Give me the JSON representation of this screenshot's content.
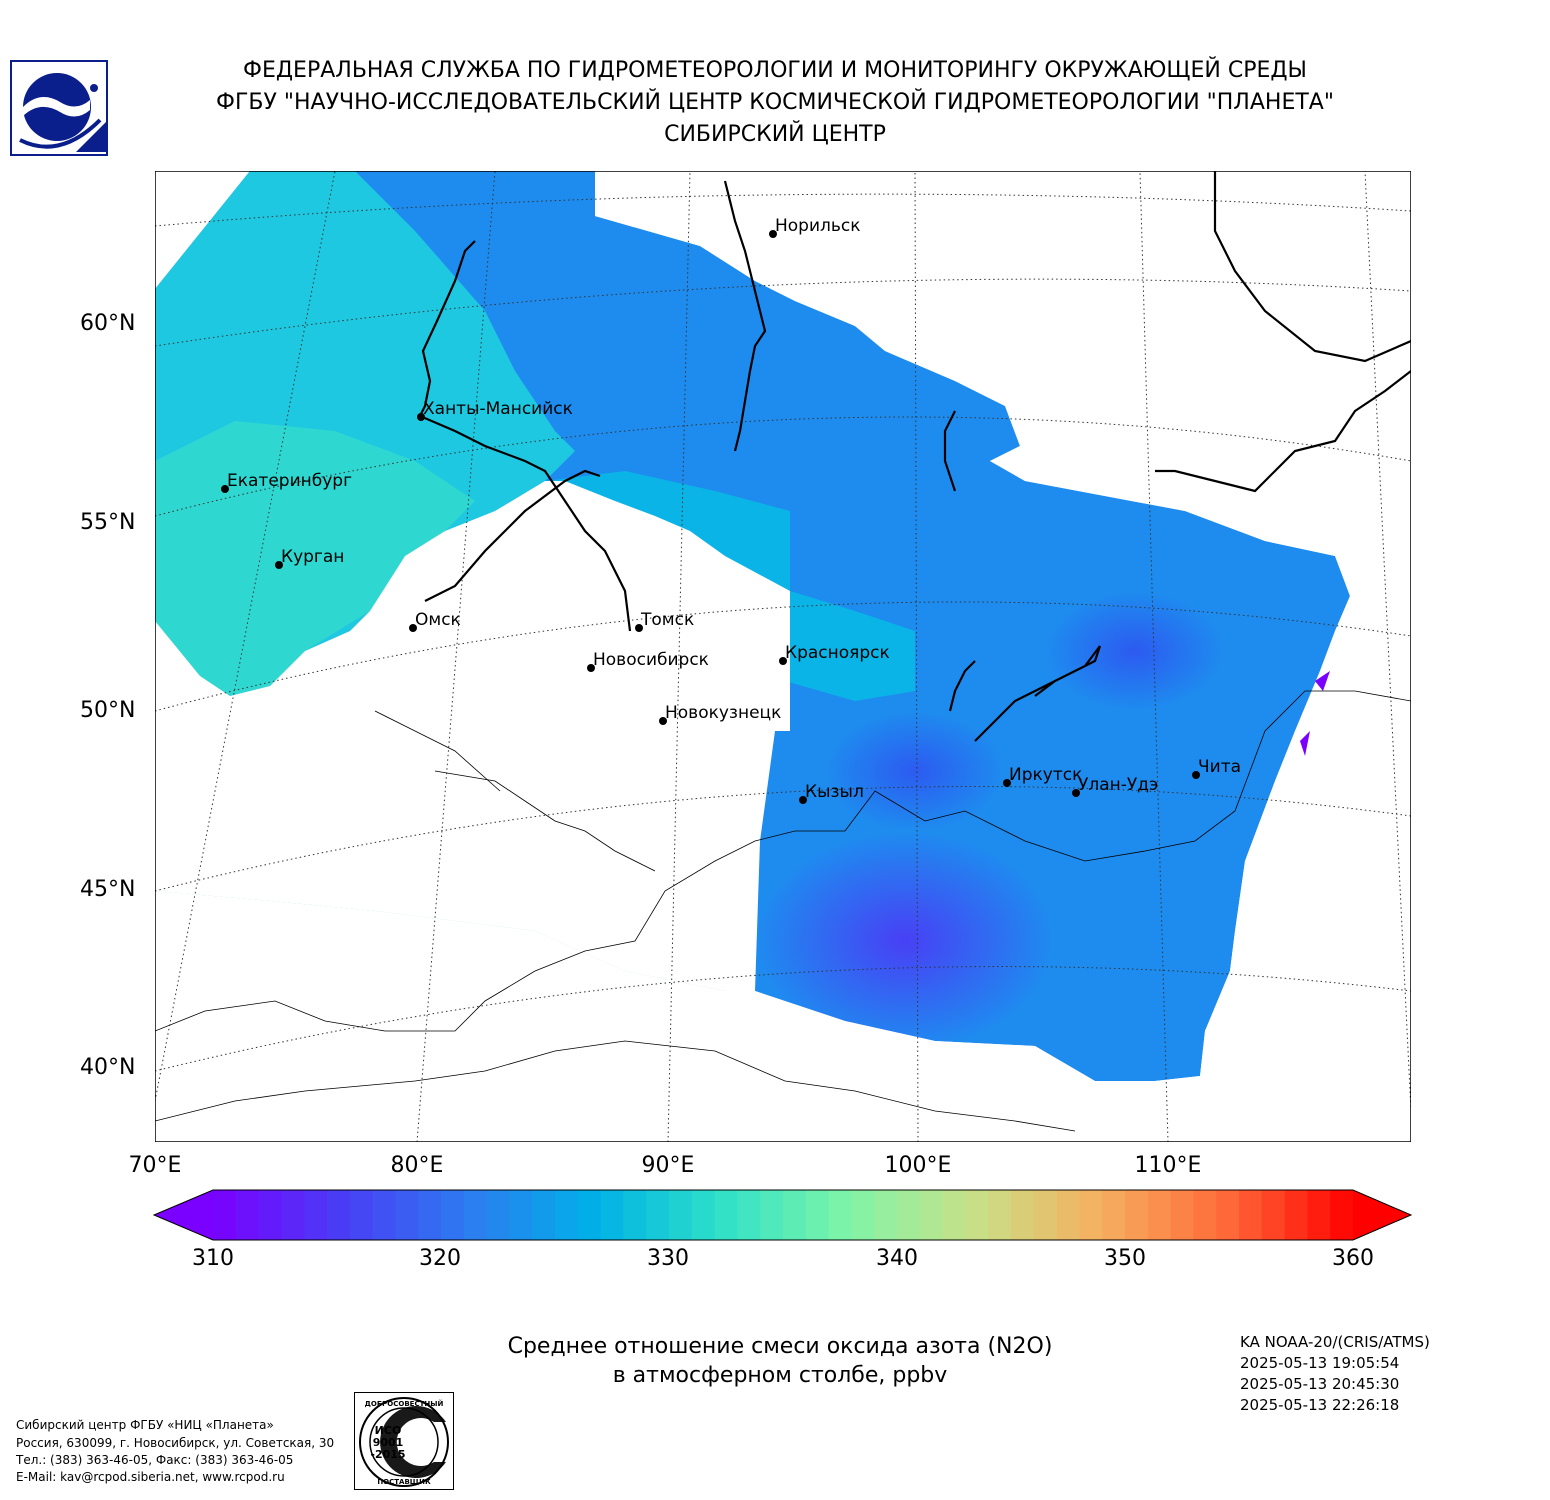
{
  "header": {
    "line1": "ФЕДЕРАЛЬНАЯ СЛУЖБА ПО ГИДРОМЕТЕОРОЛОГИИ И МОНИТОРИНГУ ОКРУЖАЮЩЕЙ СРЕДЫ",
    "line2": "ФГБУ \"НАУЧНО-ИССЛЕДОВАТЕЛЬСКИЙ ЦЕНТР КОСМИЧЕСКОЙ ГИДРОМЕТЕОРОЛОГИИ \"ПЛАНЕТА\"",
    "line3": "СИБИРСКИЙ ЦЕНТР"
  },
  "map": {
    "lat_labels": [
      "60°N",
      "55°N",
      "50°N",
      "45°N",
      "40°N"
    ],
    "lon_labels": [
      "70°E",
      "80°E",
      "90°E",
      "100°E",
      "110°E"
    ],
    "cities": [
      {
        "name": "Норильск"
      },
      {
        "name": "Ханты-Мансийск"
      },
      {
        "name": "Екатеринбург"
      },
      {
        "name": "Курган"
      },
      {
        "name": "Омск"
      },
      {
        "name": "Томск"
      },
      {
        "name": "Новосибирск"
      },
      {
        "name": "Красноярск"
      },
      {
        "name": "Новокузнецк"
      },
      {
        "name": "Кызыл"
      },
      {
        "name": "Иркутск"
      },
      {
        "name": "Улан-Удэ"
      },
      {
        "name": "Чита"
      }
    ]
  },
  "colorbar": {
    "min": 310,
    "max": 360,
    "ticks": [
      "310",
      "320",
      "330",
      "340",
      "350",
      "360"
    ],
    "colors": [
      "#7a00ff",
      "#4a3cf5",
      "#2e7bf0",
      "#00b0e8",
      "#2ee0c8",
      "#7ff5a8",
      "#c8e088",
      "#f5b060",
      "#ff6a3a",
      "#ff0000"
    ]
  },
  "title": {
    "line1": "Среднее отношение смеси оксида азота (N2O)",
    "line2": "в атмосферном столбе, ppbv"
  },
  "satellite": {
    "name": "KA NOAA-20/(CRIS/ATMS)",
    "times": [
      "2025-05-13 19:05:54",
      "2025-05-13 20:45:30",
      "2025-05-13 22:26:18"
    ]
  },
  "footer": {
    "lines": [
      "Сибирский центр ФГБУ «НИЦ «Планета»",
      "Россия, 630099, г. Новосибирск, ул. Советская, 30",
      "Тел.: (383) 363-46-05, Факс: (383) 363-46-05",
      "E-Mail: kav@rcpod.siberia.net, www.rcpod.ru"
    ]
  },
  "iso_badge": {
    "top": "ДОБРОСОВЕСТНЫЙ",
    "center1": "ИСО",
    "center2": "9001",
    "center3": "-2015",
    "bottom": "ПОСТАВЩИК"
  }
}
